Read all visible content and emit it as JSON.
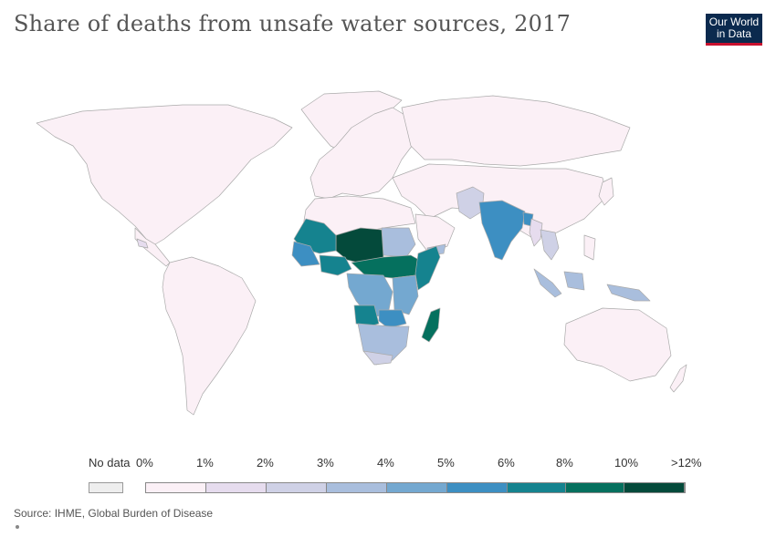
{
  "title": "Share of deaths from unsafe water sources, 2017",
  "logo": {
    "line1": "Our World",
    "line2": "in Data"
  },
  "legend": {
    "no_data_label": "No data",
    "no_data_color": "#eeeeee",
    "bins": [
      {
        "label": "0%",
        "color": "#fbf0f6"
      },
      {
        "label": "1%",
        "color": "#e6dcee"
      },
      {
        "label": "2%",
        "color": "#cfd1e6"
      },
      {
        "label": "3%",
        "color": "#a9bedd"
      },
      {
        "label": "4%",
        "color": "#74a8d0"
      },
      {
        "label": "5%",
        "color": "#3d8fc2"
      },
      {
        "label": "6%",
        "color": "#15838f"
      },
      {
        "label": "8%",
        "color": "#05705e"
      },
      {
        "label": "10%",
        "color": "#044a3b"
      },
      {
        "label": ">12%",
        "color": ""
      }
    ]
  },
  "source": "Source: IHME, Global Burden of Disease",
  "colors": {
    "land": "#fbf0f6",
    "border": "#aaaaaa"
  }
}
